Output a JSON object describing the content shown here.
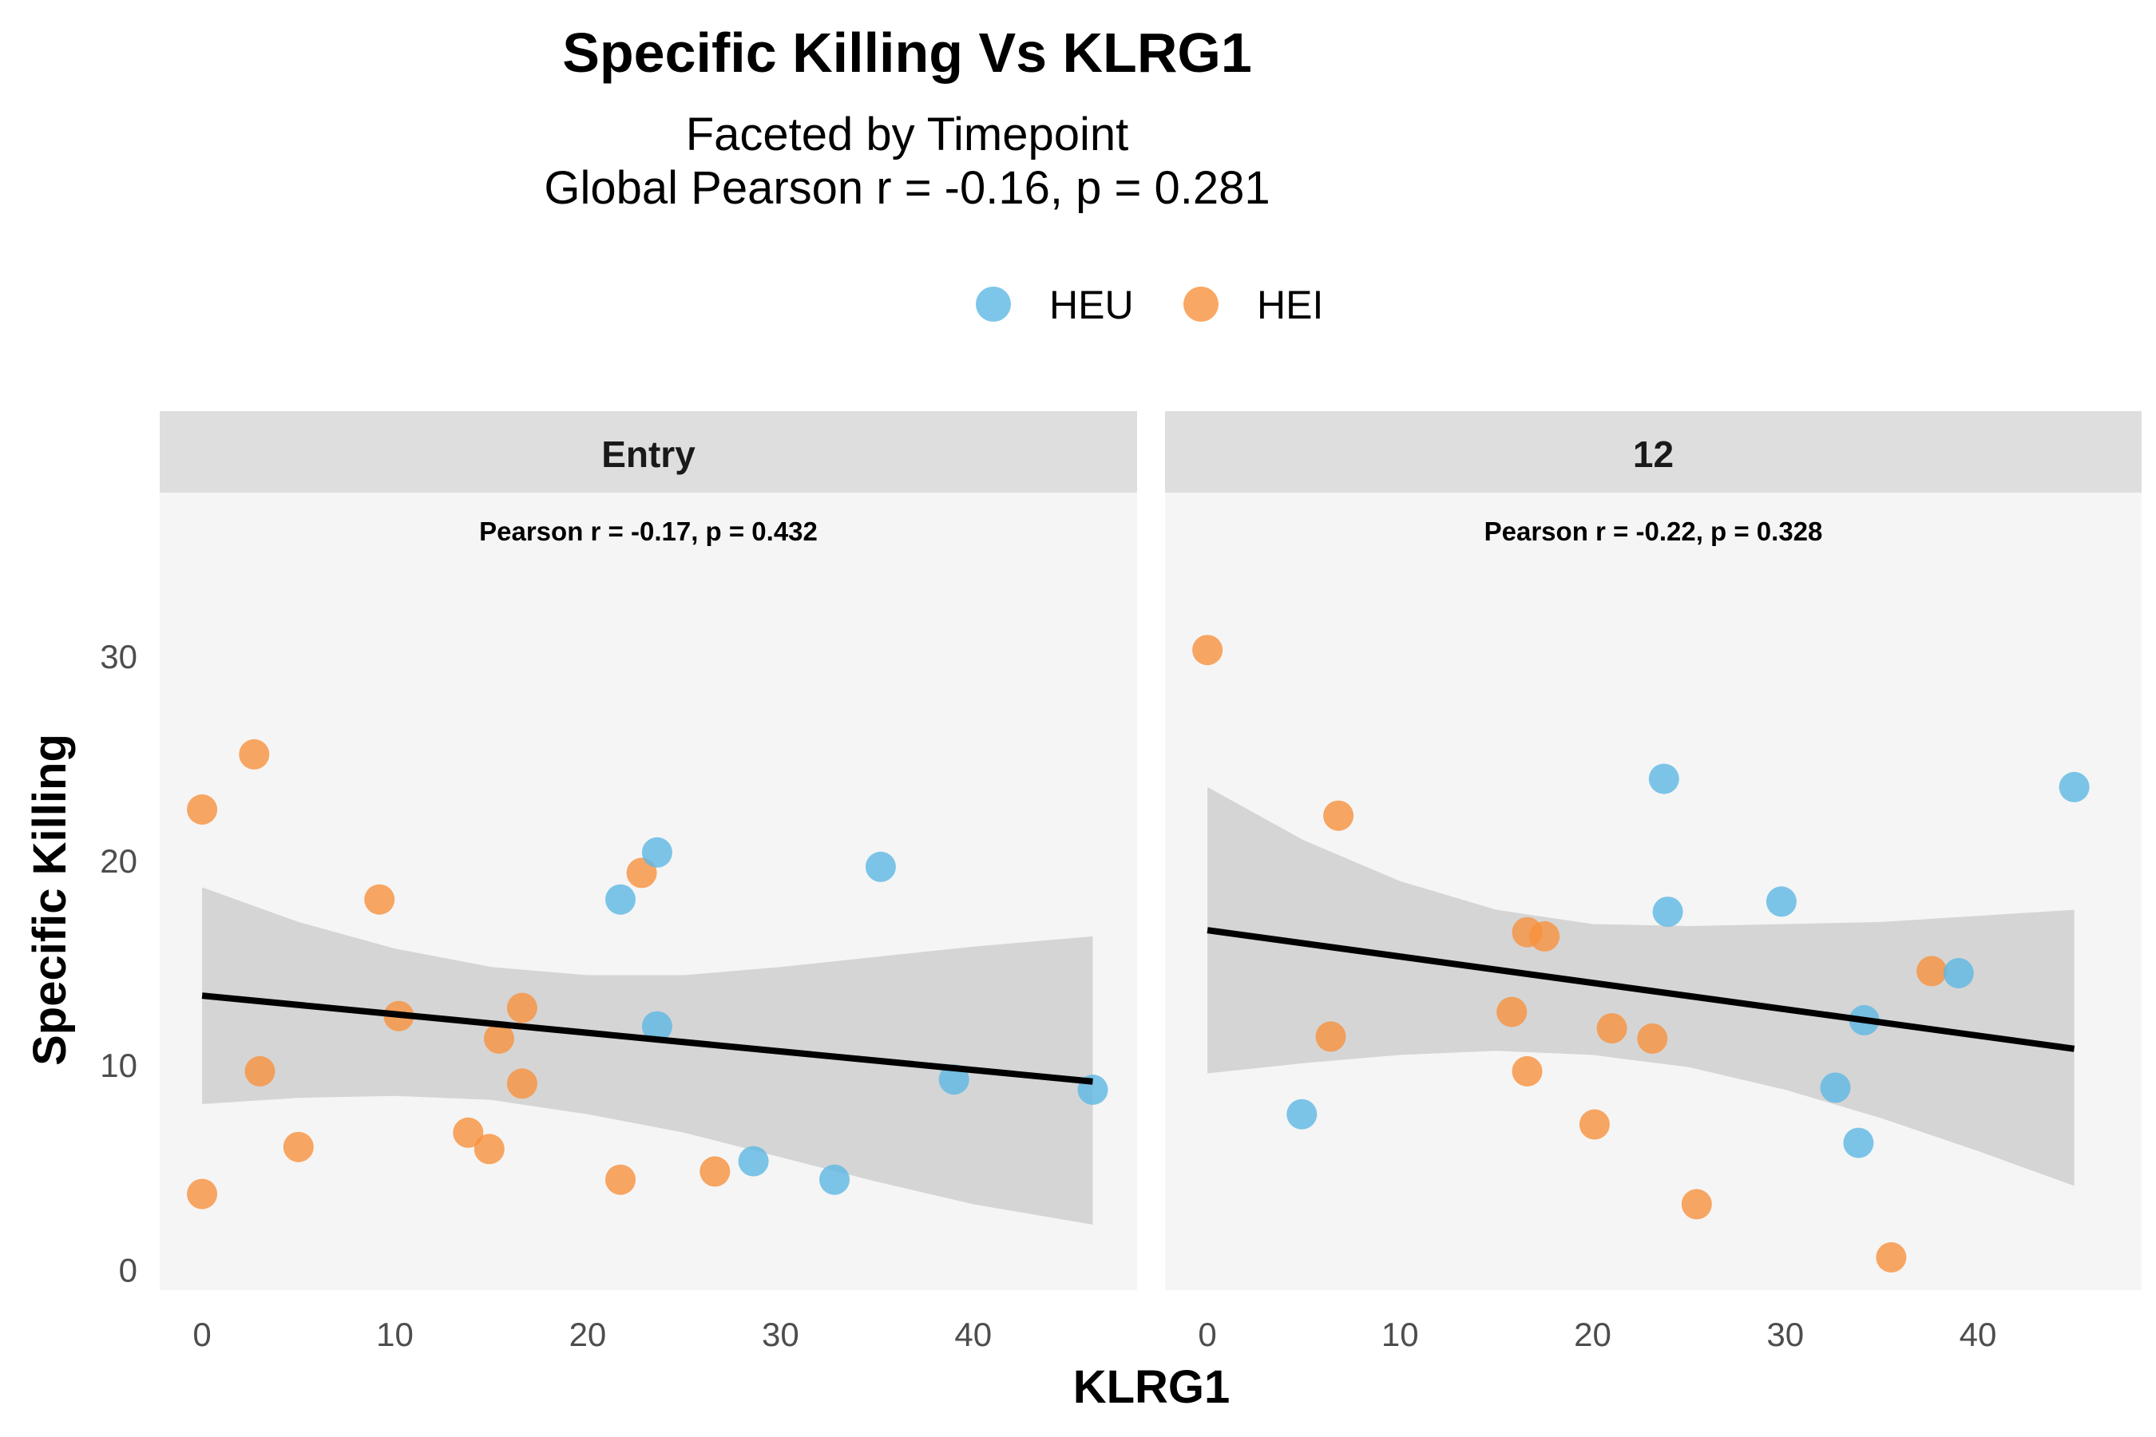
{
  "chart_data": {
    "type": "scatter",
    "title": "Specific Killing Vs KLRG1",
    "subtitle_lines": [
      "Faceted by Timepoint",
      "Global Pearson r = -0.16, p = 0.281"
    ],
    "xlabel": "KLRG1",
    "ylabel": "Specific Killing",
    "xlim": [
      -2.2,
      48.5
    ],
    "ylim": [
      -1,
      38
    ],
    "x_ticks": [
      0,
      10,
      20,
      30,
      40
    ],
    "y_ticks": [
      0,
      10,
      20,
      30
    ],
    "legend": {
      "position": "top",
      "entries": [
        {
          "name": "HEU",
          "color": "#5DB8E3"
        },
        {
          "name": "HEI",
          "color": "#F7913D"
        }
      ]
    },
    "colors": {
      "HEU": "#5DB8E3",
      "HEI": "#F7913D",
      "fit_line": "#000000",
      "ribbon": "#BFBFBF",
      "panel_bg": "#F5F5F5",
      "strip_bg": "#DEDEDE"
    },
    "panels": [
      {
        "label": "Entry",
        "annotation": "Pearson r = -0.17, p = 0.432",
        "fit": {
          "x": [
            0,
            46.2
          ],
          "y": [
            13.4,
            9.2
          ]
        },
        "band": {
          "x": [
            0,
            5,
            10,
            15,
            20,
            25,
            30,
            35,
            40,
            46.2
          ],
          "upper": [
            18.7,
            17.0,
            15.7,
            14.8,
            14.4,
            14.4,
            14.8,
            15.3,
            15.8,
            16.3
          ],
          "lower": [
            8.1,
            8.4,
            8.5,
            8.3,
            7.6,
            6.7,
            5.5,
            4.3,
            3.2,
            2.2
          ]
        },
        "points": [
          {
            "group": "HEI",
            "x": 0.0,
            "y": 22.5
          },
          {
            "group": "HEI",
            "x": 2.7,
            "y": 25.2
          },
          {
            "group": "HEI",
            "x": 0.0,
            "y": 3.7
          },
          {
            "group": "HEI",
            "x": 3.0,
            "y": 9.7
          },
          {
            "group": "HEI",
            "x": 5.0,
            "y": 6.0
          },
          {
            "group": "HEI",
            "x": 9.2,
            "y": 18.1
          },
          {
            "group": "HEI",
            "x": 10.2,
            "y": 12.4
          },
          {
            "group": "HEI",
            "x": 13.8,
            "y": 6.7
          },
          {
            "group": "HEI",
            "x": 14.9,
            "y": 5.9
          },
          {
            "group": "HEI",
            "x": 15.4,
            "y": 11.3
          },
          {
            "group": "HEI",
            "x": 16.6,
            "y": 12.8
          },
          {
            "group": "HEI",
            "x": 16.6,
            "y": 9.1
          },
          {
            "group": "HEI",
            "x": 21.7,
            "y": 4.4
          },
          {
            "group": "HEI",
            "x": 22.8,
            "y": 19.4
          },
          {
            "group": "HEI",
            "x": 26.6,
            "y": 4.8
          },
          {
            "group": "HEU",
            "x": 21.7,
            "y": 18.1
          },
          {
            "group": "HEU",
            "x": 23.6,
            "y": 20.4
          },
          {
            "group": "HEU",
            "x": 23.6,
            "y": 11.9
          },
          {
            "group": "HEU",
            "x": 28.6,
            "y": 5.3
          },
          {
            "group": "HEU",
            "x": 32.8,
            "y": 4.4
          },
          {
            "group": "HEU",
            "x": 35.2,
            "y": 19.7
          },
          {
            "group": "HEU",
            "x": 39.0,
            "y": 9.3
          },
          {
            "group": "HEU",
            "x": 46.2,
            "y": 8.8
          }
        ]
      },
      {
        "label": "12",
        "annotation": "Pearson r = -0.22, p = 0.328",
        "fit": {
          "x": [
            0,
            45.0
          ],
          "y": [
            16.6,
            10.8
          ]
        },
        "band": {
          "x": [
            0,
            5,
            10,
            15,
            20,
            25,
            30,
            35,
            40,
            45.0
          ],
          "upper": [
            23.6,
            21.0,
            19.0,
            17.6,
            16.9,
            16.8,
            16.9,
            17.0,
            17.3,
            17.6
          ],
          "lower": [
            9.6,
            10.1,
            10.5,
            10.7,
            10.5,
            9.9,
            8.8,
            7.4,
            5.8,
            4.1
          ]
        },
        "points": [
          {
            "group": "HEI",
            "x": 0.0,
            "y": 30.3
          },
          {
            "group": "HEI",
            "x": 6.4,
            "y": 11.4
          },
          {
            "group": "HEI",
            "x": 6.8,
            "y": 22.2
          },
          {
            "group": "HEI",
            "x": 15.8,
            "y": 12.6
          },
          {
            "group": "HEI",
            "x": 16.6,
            "y": 16.5
          },
          {
            "group": "HEI",
            "x": 17.5,
            "y": 16.3
          },
          {
            "group": "HEI",
            "x": 16.6,
            "y": 9.7
          },
          {
            "group": "HEI",
            "x": 20.1,
            "y": 7.1
          },
          {
            "group": "HEI",
            "x": 21.0,
            "y": 11.8
          },
          {
            "group": "HEI",
            "x": 23.1,
            "y": 11.3
          },
          {
            "group": "HEI",
            "x": 25.4,
            "y": 3.2
          },
          {
            "group": "HEI",
            "x": 35.5,
            "y": 0.6
          },
          {
            "group": "HEI",
            "x": 37.6,
            "y": 14.6
          },
          {
            "group": "HEU",
            "x": 4.9,
            "y": 7.6
          },
          {
            "group": "HEU",
            "x": 23.7,
            "y": 24.0
          },
          {
            "group": "HEU",
            "x": 23.9,
            "y": 17.5
          },
          {
            "group": "HEU",
            "x": 29.8,
            "y": 18.0
          },
          {
            "group": "HEU",
            "x": 32.6,
            "y": 8.9
          },
          {
            "group": "HEU",
            "x": 33.8,
            "y": 6.2
          },
          {
            "group": "HEU",
            "x": 34.1,
            "y": 12.2
          },
          {
            "group": "HEU",
            "x": 39.0,
            "y": 14.5
          },
          {
            "group": "HEU",
            "x": 45.0,
            "y": 23.6
          }
        ]
      }
    ]
  }
}
